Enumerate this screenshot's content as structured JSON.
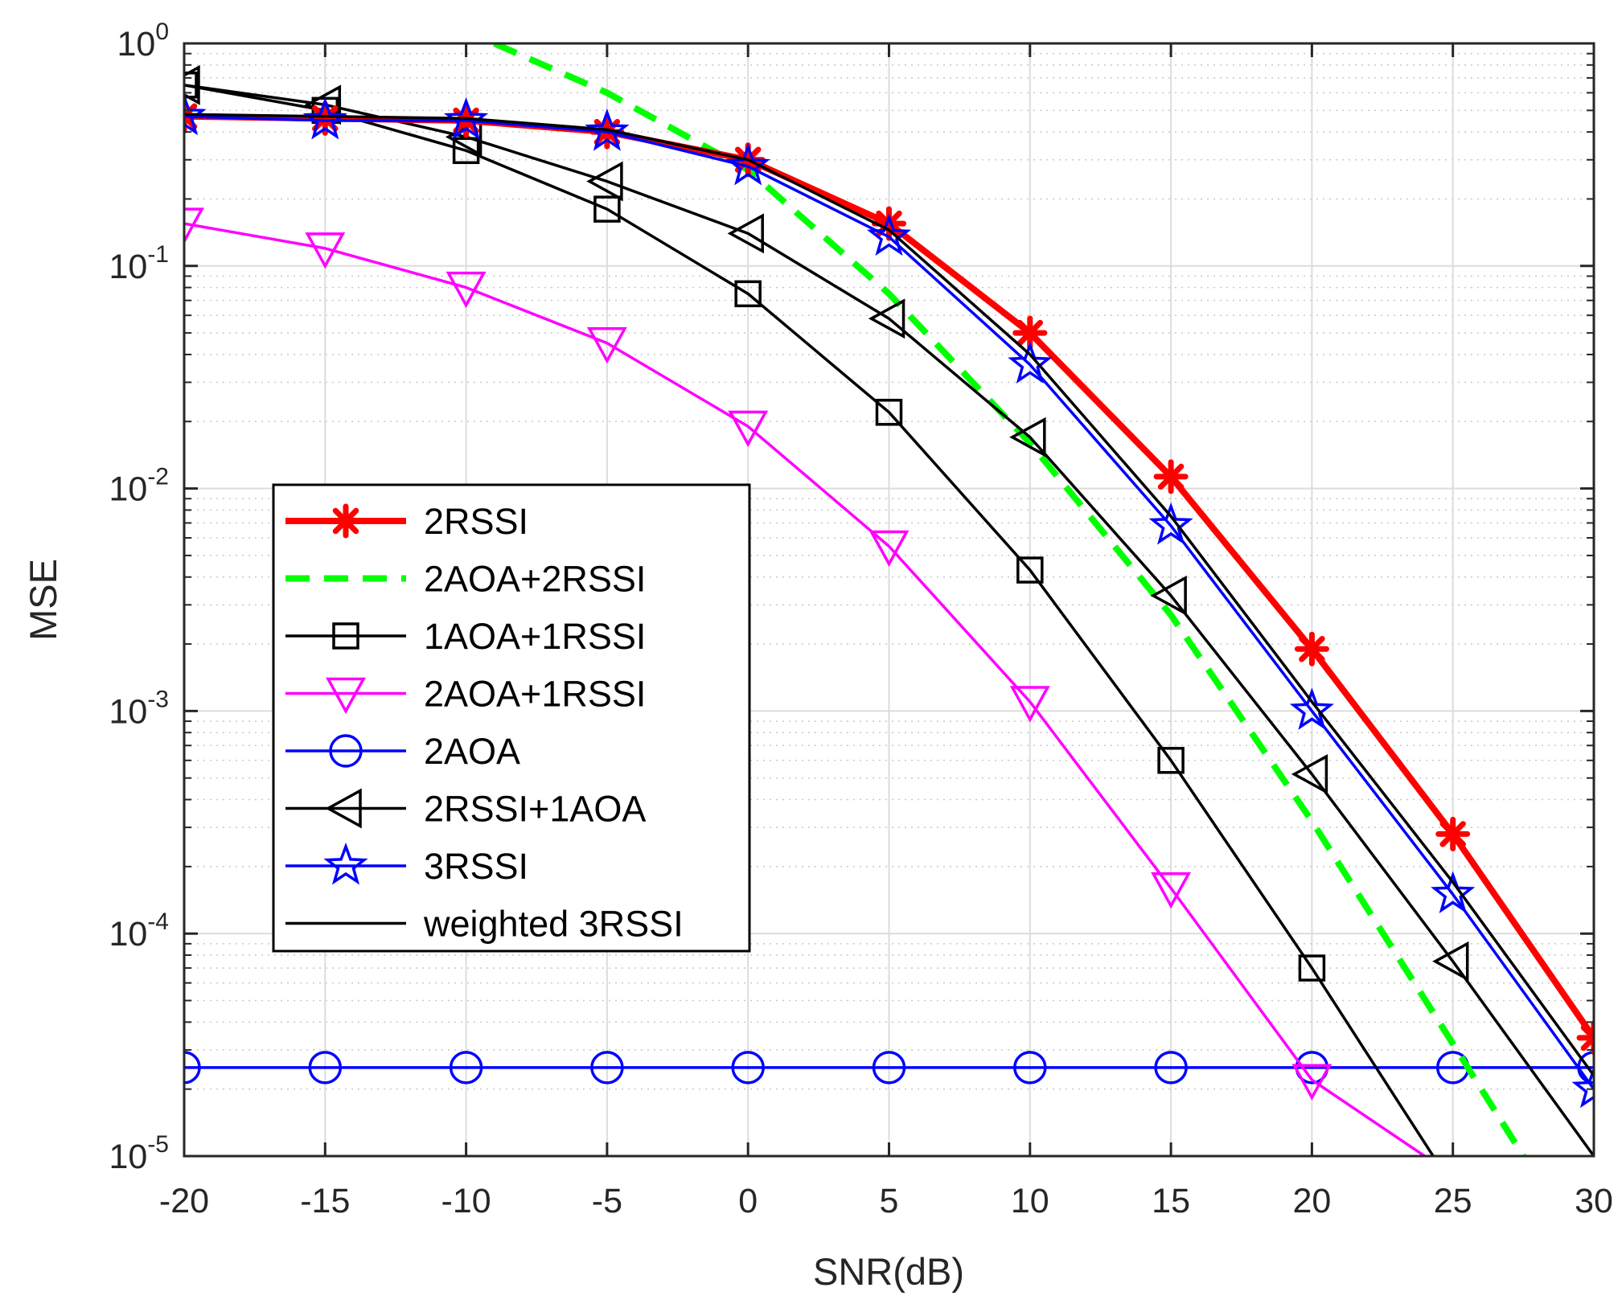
{
  "chart_data": {
    "type": "line",
    "title": "",
    "xlabel": "SNR(dB)",
    "ylabel": "MSE",
    "xlim": [
      -20,
      30
    ],
    "ylim": [
      1e-05,
      1
    ],
    "yscale": "log",
    "grid": true,
    "minor_grid": true,
    "legend_position": "lower-left",
    "x": [
      -20,
      -15,
      -10,
      -5,
      0,
      5,
      10,
      15,
      20,
      25,
      30
    ],
    "x_tick_labels": [
      "-20",
      "-15",
      "-10",
      "-5",
      "0",
      "5",
      "10",
      "15",
      "20",
      "25",
      "30"
    ],
    "y_ticks": [
      {
        "base": "10",
        "exp": "0",
        "value": 1
      },
      {
        "base": "10",
        "exp": "-1",
        "value": 0.1
      },
      {
        "base": "10",
        "exp": "-2",
        "value": 0.01
      },
      {
        "base": "10",
        "exp": "-3",
        "value": 0.001
      },
      {
        "base": "10",
        "exp": "-4",
        "value": 0.0001
      },
      {
        "base": "10",
        "exp": "-5",
        "value": 1e-05
      }
    ],
    "series": [
      {
        "name": "2RSSI",
        "color": "#ff0000",
        "line": "solid",
        "width": 8,
        "marker": "asterisk",
        "x": [
          -20,
          -15,
          -10,
          -5,
          0,
          5,
          10,
          15,
          20,
          25,
          30
        ],
        "values": [
          0.47,
          0.46,
          0.45,
          0.4,
          0.3,
          0.155,
          0.05,
          0.0113,
          0.0019,
          0.00028,
          3.4e-05
        ]
      },
      {
        "name": "2AOA+2RSSI",
        "color": "#00ff00",
        "line": "dashed",
        "width": 8,
        "marker": "none",
        "x": [
          -9,
          -5,
          0,
          5,
          10,
          15,
          20,
          25,
          27.5
        ],
        "values": [
          1.0,
          0.6,
          0.27,
          0.075,
          0.016,
          0.0027,
          0.00032,
          3.2e-05,
          1e-05
        ]
      },
      {
        "name": "1AOA+1RSSI",
        "color": "#000000",
        "line": "solid",
        "width": 3.5,
        "marker": "square",
        "x": [
          -20,
          -15,
          -10,
          -5,
          0,
          5,
          10,
          15,
          20,
          24.3
        ],
        "values": [
          0.65,
          0.5,
          0.33,
          0.18,
          0.075,
          0.022,
          0.0043,
          0.0006,
          7e-05,
          1e-05
        ]
      },
      {
        "name": "2AOA+1RSSI",
        "color": "#ff00ff",
        "line": "solid",
        "width": 3.5,
        "marker": "triangle-down",
        "x": [
          -20,
          -15,
          -10,
          -5,
          0,
          5,
          10,
          15,
          20,
          24
        ],
        "values": [
          0.155,
          0.12,
          0.08,
          0.045,
          0.019,
          0.0055,
          0.0011,
          0.00016,
          2.2e-05,
          1e-05
        ]
      },
      {
        "name": "2AOA",
        "color": "#0000ff",
        "line": "solid",
        "width": 3.5,
        "marker": "circle",
        "x": [
          -20,
          -15,
          -10,
          -5,
          0,
          5,
          10,
          15,
          20,
          25,
          30
        ],
        "values": [
          2.5e-05,
          2.5e-05,
          2.5e-05,
          2.5e-05,
          2.5e-05,
          2.5e-05,
          2.5e-05,
          2.5e-05,
          2.5e-05,
          2.5e-05,
          2.5e-05
        ]
      },
      {
        "name": "2RSSI+1AOA",
        "color": "#000000",
        "line": "solid",
        "width": 3.5,
        "marker": "triangle-left",
        "x": [
          -20,
          -15,
          -10,
          -5,
          0,
          5,
          10,
          15,
          20,
          25,
          30
        ],
        "values": [
          0.65,
          0.53,
          0.38,
          0.24,
          0.14,
          0.058,
          0.017,
          0.0033,
          0.00052,
          7.5e-05,
          1e-05
        ]
      },
      {
        "name": "3RSSI",
        "color": "#0000ff",
        "line": "solid",
        "width": 3.5,
        "marker": "star",
        "x": [
          -20,
          -15,
          -10,
          -5,
          0,
          5,
          10,
          15,
          20,
          25,
          30
        ],
        "values": [
          0.47,
          0.45,
          0.45,
          0.4,
          0.28,
          0.135,
          0.036,
          0.0068,
          0.001,
          0.00015,
          2e-05
        ]
      },
      {
        "name": "weighted 3RSSI",
        "color": "#000000",
        "line": "solid",
        "width": 3.5,
        "marker": "none",
        "x": [
          -20,
          -15,
          -10,
          -5,
          0,
          5,
          10,
          15,
          20,
          25,
          30
        ],
        "values": [
          0.48,
          0.47,
          0.46,
          0.41,
          0.3,
          0.145,
          0.04,
          0.0075,
          0.0011,
          0.00017,
          2.3e-05
        ]
      }
    ]
  }
}
